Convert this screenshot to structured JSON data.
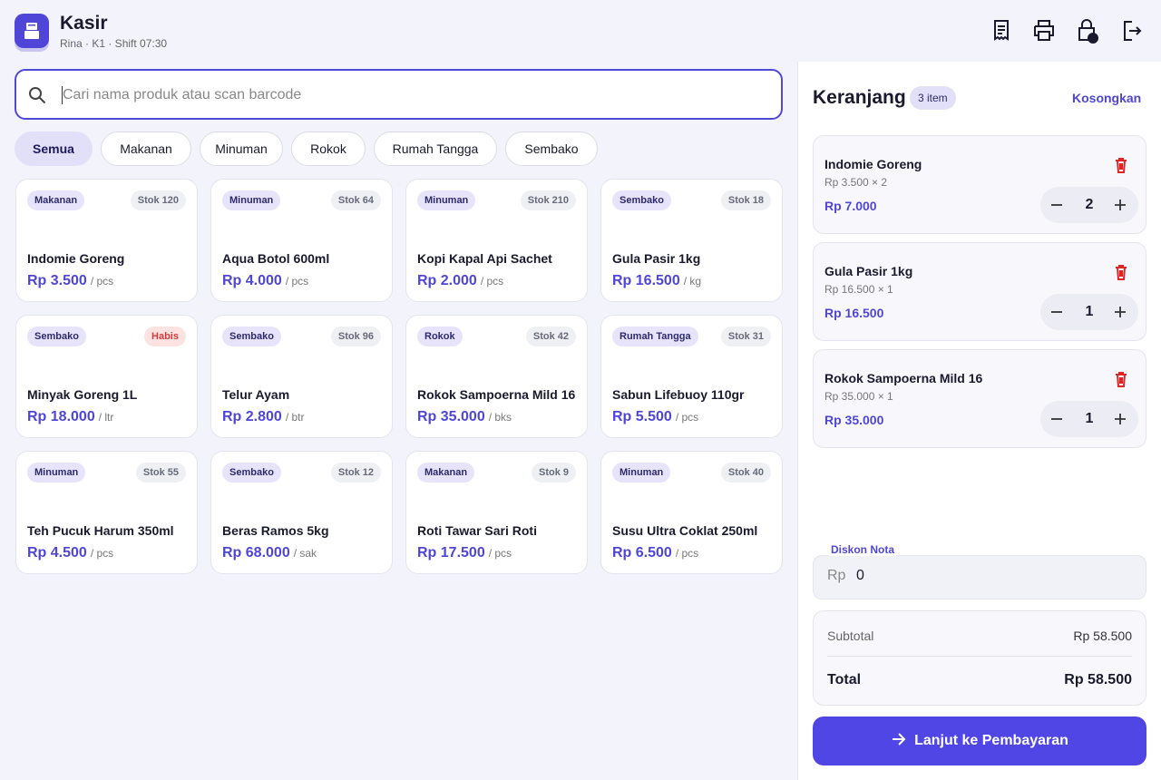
{
  "header": {
    "title": "Kasir",
    "subtitle": "Rina · K1 · Shift 07:30"
  },
  "search": {
    "placeholder": "Cari nama produk atau scan barcode"
  },
  "filters": [
    "Semua",
    "Makanan",
    "Minuman",
    "Rokok",
    "Rumah Tangga",
    "Sembako"
  ],
  "products": [
    {
      "category": "Makanan",
      "stock": "Stok 120",
      "name": "Indomie Goreng",
      "price": "Rp 3.500",
      "unit": "/ pcs"
    },
    {
      "category": "Minuman",
      "stock": "Stok 64",
      "name": "Aqua Botol 600ml",
      "price": "Rp 4.000",
      "unit": "/ pcs"
    },
    {
      "category": "Minuman",
      "stock": "Stok 210",
      "name": "Kopi Kapal Api Sachet",
      "price": "Rp 2.000",
      "unit": "/ pcs"
    },
    {
      "category": "Sembako",
      "stock": "Stok 18",
      "name": "Gula Pasir 1kg",
      "price": "Rp 16.500",
      "unit": "/ kg"
    },
    {
      "category": "Sembako",
      "stock": "Habis",
      "name": "Minyak Goreng 1L",
      "price": "Rp 18.000",
      "unit": "/ ltr"
    },
    {
      "category": "Sembako",
      "stock": "Stok 96",
      "name": "Telur Ayam",
      "price": "Rp 2.800",
      "unit": "/ btr"
    },
    {
      "category": "Rokok",
      "stock": "Stok 42",
      "name": "Rokok Sampoerna Mild 16",
      "price": "Rp 35.000",
      "unit": "/ bks"
    },
    {
      "category": "Rumah Tangga",
      "stock": "Stok 31",
      "name": "Sabun Lifebuoy 110gr",
      "price": "Rp 5.500",
      "unit": "/ pcs"
    },
    {
      "category": "Minuman",
      "stock": "Stok 55",
      "name": "Teh Pucuk Harum 350ml",
      "price": "Rp 4.500",
      "unit": "/ pcs"
    },
    {
      "category": "Sembako",
      "stock": "Stok 12",
      "name": "Beras Ramos 5kg",
      "price": "Rp 68.000",
      "unit": "/ sak"
    },
    {
      "category": "Makanan",
      "stock": "Stok 9",
      "name": "Roti Tawar Sari Roti",
      "price": "Rp 17.500",
      "unit": "/ pcs"
    },
    {
      "category": "Minuman",
      "stock": "Stok 40",
      "name": "Susu Ultra Coklat 250ml",
      "price": "Rp 6.500",
      "unit": "/ pcs"
    }
  ],
  "cart": {
    "title": "Keranjang",
    "count": "3 item",
    "clear": "Kosongkan",
    "items": [
      {
        "name": "Indomie Goreng",
        "detail": "Rp 3.500 × 2",
        "total": "Rp 7.000",
        "qty": 2
      },
      {
        "name": "Gula Pasir 1kg",
        "detail": "Rp 16.500 × 1",
        "total": "Rp 16.500",
        "qty": 1
      },
      {
        "name": "Rokok Sampoerna Mild 16",
        "detail": "Rp 35.000 × 1",
        "total": "Rp 35.000",
        "qty": 1
      }
    ],
    "discount_label": "Diskon Nota",
    "discount_prefix": "Rp",
    "discount_value": "0",
    "subtotal_label": "Subtotal",
    "subtotal": "Rp 58.500",
    "total_label": "Total",
    "total": "Rp 58.500",
    "checkout": "Lanjut ke Pembayaran"
  }
}
